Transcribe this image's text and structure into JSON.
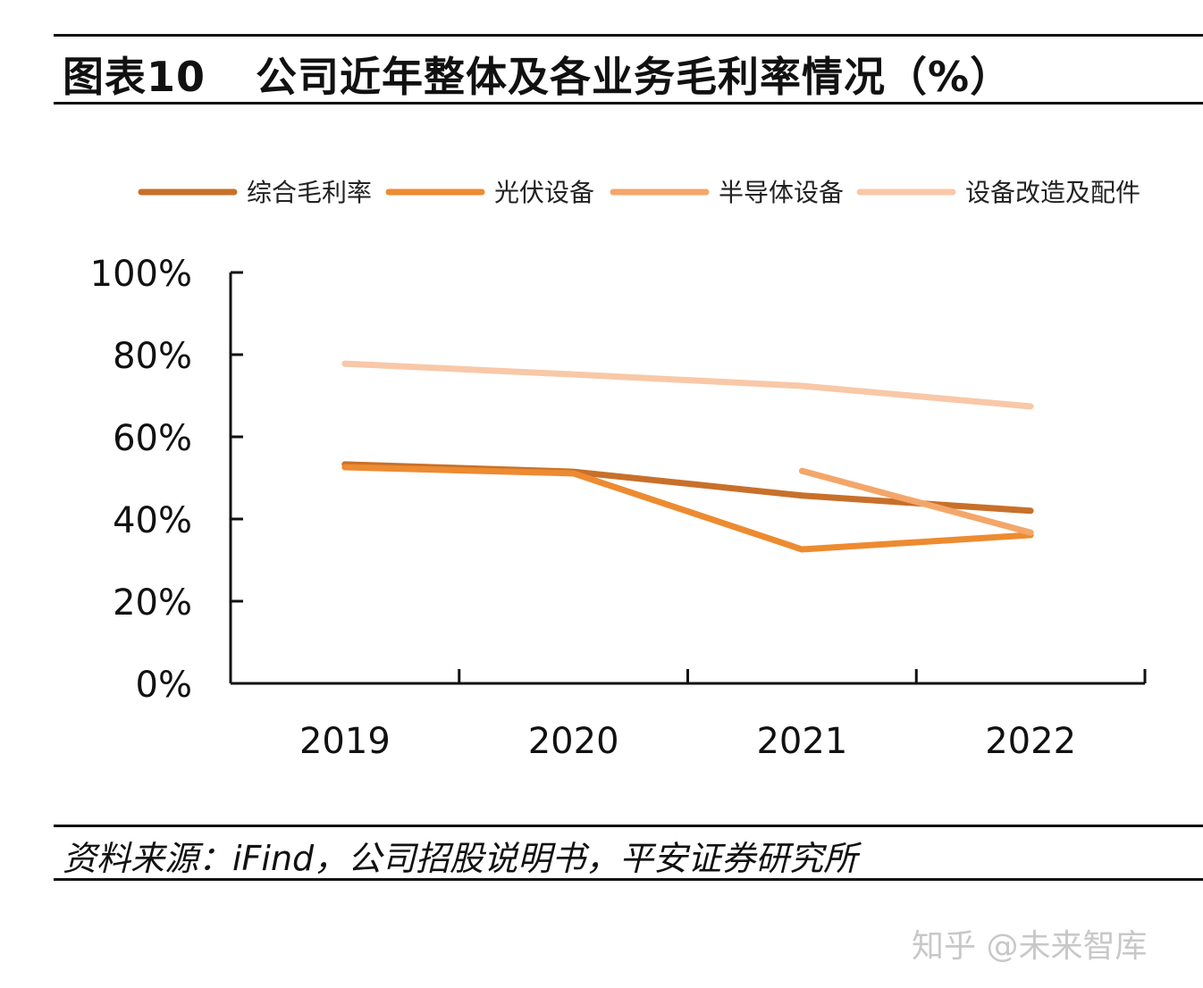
{
  "header": {
    "figure_no": "图表10",
    "title": "公司近年整体及各业务毛利率情况（%）"
  },
  "source": "资料来源：iFind，公司招股说明书，平安证券研究所",
  "watermark": "知乎 @未来智库",
  "chart_data": {
    "type": "line",
    "title": "公司近年整体及各业务毛利率情况（%）",
    "categories": [
      "2019",
      "2020",
      "2021",
      "2022"
    ],
    "ylim": [
      0,
      100
    ],
    "yticks": [
      "0%",
      "20%",
      "40%",
      "60%",
      "80%",
      "100%"
    ],
    "grid": false,
    "legend_position": "top",
    "series": [
      {
        "name": "综合毛利率",
        "color": "#C8702A",
        "values": [
          53.3,
          51.5,
          45.7,
          42.0
        ]
      },
      {
        "name": "光伏设备",
        "color": "#ED8B30",
        "values": [
          52.6,
          51.1,
          32.6,
          36.1
        ]
      },
      {
        "name": "半导体设备",
        "color": "#F4A66A",
        "values": [
          null,
          null,
          51.7,
          36.7
        ]
      },
      {
        "name": "设备改造及配件",
        "color": "#F8C8A8",
        "values": [
          77.8,
          75.2,
          72.4,
          67.4
        ]
      }
    ]
  }
}
